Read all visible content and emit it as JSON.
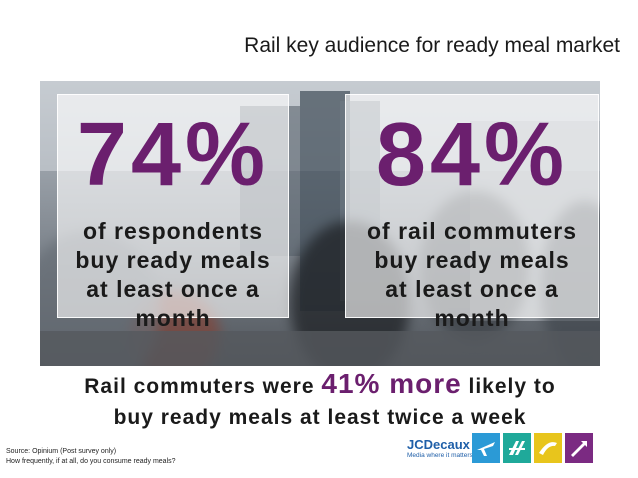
{
  "title": "Rail key audience for ready meal market",
  "stats": [
    {
      "value": "74%",
      "caption_lines": [
        "of respondents",
        "buy ready meals",
        "at least once a",
        "month"
      ]
    },
    {
      "value": "84%",
      "caption_lines": [
        "of rail commuters",
        "buy ready meals",
        "at least once a",
        "month"
      ]
    }
  ],
  "highlight": {
    "before": "Rail commuters were",
    "emphasis": "41% more",
    "after": "likely to",
    "line2": "buy ready meals at least twice a week"
  },
  "source": {
    "line1": "Source: Opinium (Post survey only)",
    "line2": "How frequently, if at all, do you consume ready meals?"
  },
  "logo": {
    "brand": "JCDecaux",
    "tagline": "Media where it matters"
  },
  "icons": [
    {
      "name": "airport-icon",
      "color": "#2b9ad6"
    },
    {
      "name": "rail-icon",
      "color": "#1fa99a"
    },
    {
      "name": "transport-icon",
      "color": "#e8c51c"
    },
    {
      "name": "outdoor-icon",
      "color": "#7b2a82"
    }
  ],
  "colors": {
    "accent": "#6b1f6e",
    "brand": "#1f5fa8"
  }
}
